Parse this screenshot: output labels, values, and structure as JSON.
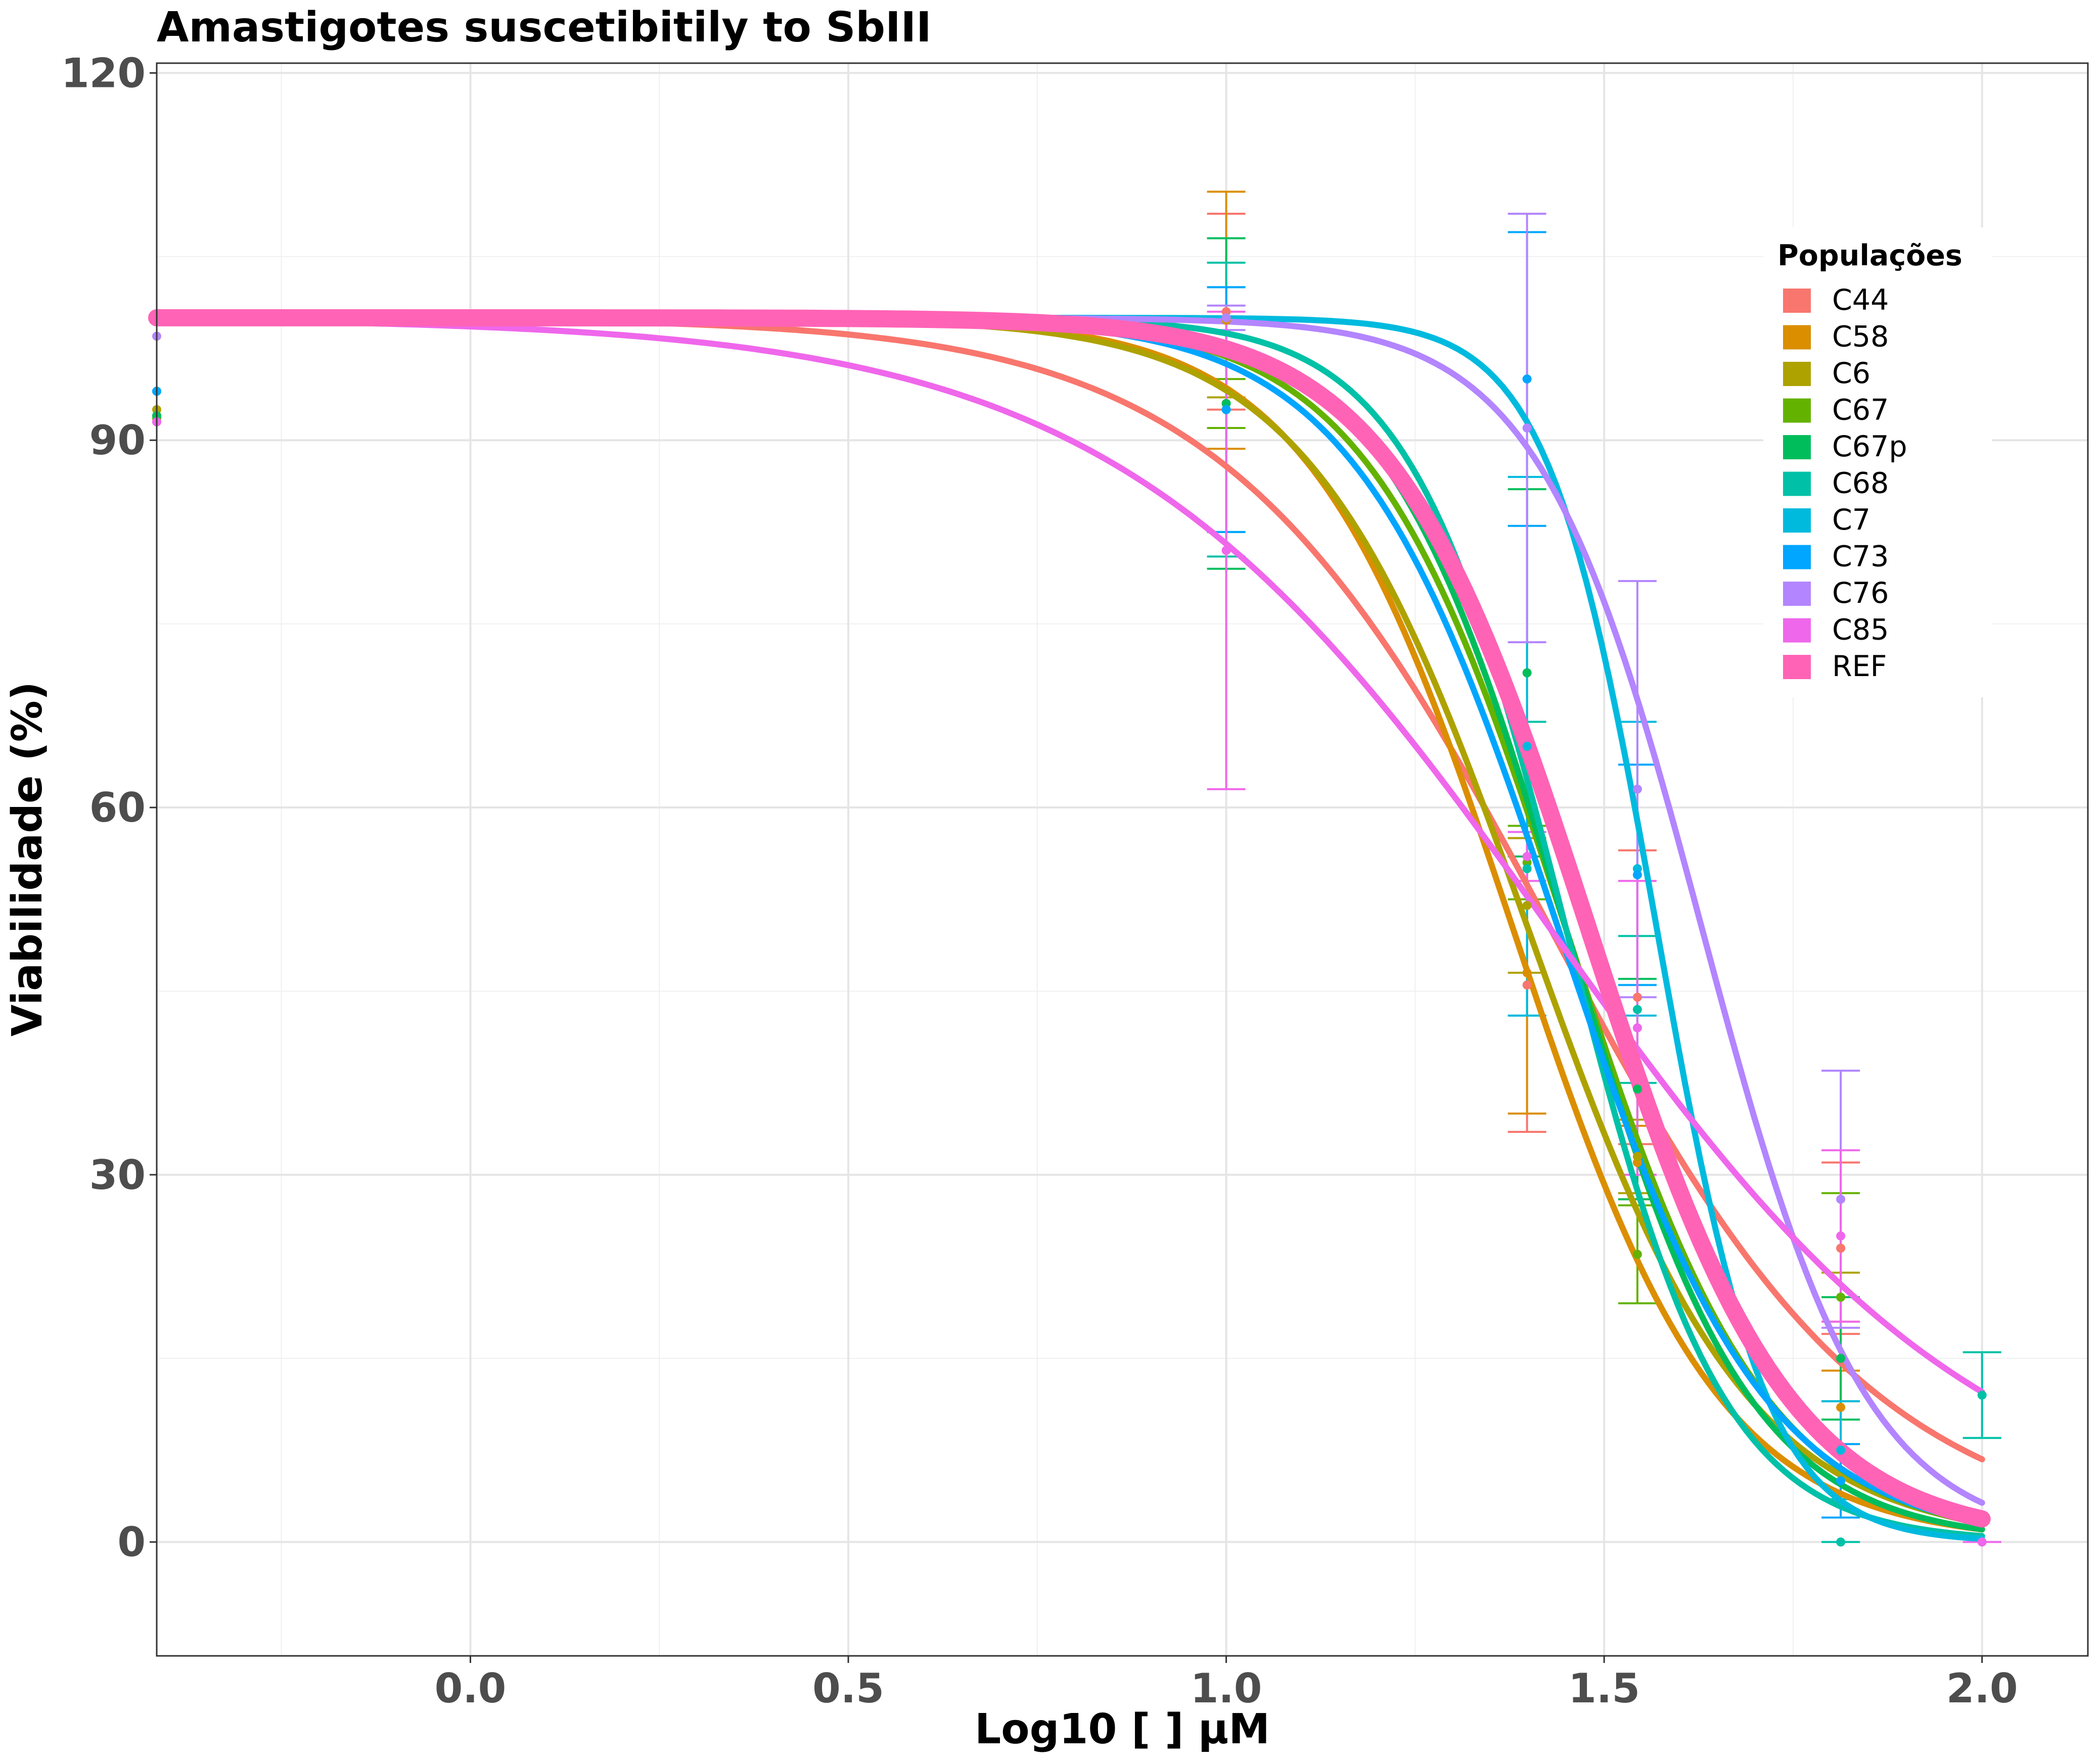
{
  "chart_data": {
    "type": "line",
    "title": "Amastigotes suscetibitily to SbIII",
    "xlabel": "Log10 [ ] µM",
    "ylabel": "Viabilidade (%)",
    "xlim": [
      -0.415,
      2.14
    ],
    "ylim": [
      -9.3,
      120.8
    ],
    "xticks": [
      0.0,
      0.5,
      1.0,
      1.5,
      2.0
    ],
    "xtick_labels": [
      "0.0",
      "0.5",
      "1.0",
      "1.5",
      "2.0"
    ],
    "yticks": [
      0,
      30,
      60,
      90,
      120
    ],
    "ytick_labels": [
      "0",
      "30",
      "60",
      "90",
      "120"
    ],
    "grid": true,
    "legend": {
      "title": "Populações",
      "position": "right-inside"
    },
    "x_doses": [
      -0.415,
      1.0,
      1.398,
      1.544,
      1.813,
      2.0
    ],
    "series": [
      {
        "name": "C44",
        "color": "#F8766D",
        "ic50_log": 1.43,
        "hill": 2.0,
        "points": [
          91.5,
          100.5,
          45.5,
          44.5,
          24.0,
          null
        ],
        "errors": [
          0,
          8,
          12,
          12,
          7,
          0
        ]
      },
      {
        "name": "C58",
        "color": "#DB8E00",
        "ic50_log": 1.38,
        "hill": 3.2,
        "points": [
          92.0,
          99.8,
          46.5,
          31.0,
          11.0,
          null
        ],
        "errors": [
          0,
          10.5,
          11.5,
          3,
          3,
          0
        ]
      },
      {
        "name": "C6",
        "color": "#AEA200",
        "ic50_log": 1.4,
        "hill": 3.0,
        "points": [
          92.5,
          100.0,
          52.0,
          31.5,
          20.0,
          null
        ],
        "errors": [
          0,
          6.5,
          5.5,
          3,
          2,
          0
        ]
      },
      {
        "name": "C67",
        "color": "#64B200",
        "ic50_log": 1.45,
        "hill": 3.3,
        "points": [
          91.8,
          93.0,
          55.5,
          23.5,
          20.0,
          null
        ],
        "errors": [
          0,
          2,
          3,
          4,
          8.5,
          0
        ]
      },
      {
        "name": "C67p",
        "color": "#00BD5C",
        "ic50_log": 1.45,
        "hill": 3.6,
        "points": [
          92.0,
          93.0,
          71.0,
          37.0,
          15.0,
          null
        ],
        "errors": [
          0,
          13.5,
          15.0,
          9,
          5,
          0
        ]
      },
      {
        "name": "C68",
        "color": "#00C1A7",
        "ic50_log": 1.45,
        "hill": 4.2,
        "points": [
          94.0,
          92.5,
          55.0,
          43.5,
          0.0,
          12.0
        ],
        "errors": [
          0,
          12,
          12,
          6,
          0,
          3.5
        ]
      },
      {
        "name": "C7",
        "color": "#00BADE",
        "ic50_log": 1.57,
        "hill": 6.0,
        "points": [
          94.0,
          92.5,
          65.0,
          55.0,
          7.5,
          null
        ],
        "errors": [
          0,
          10,
          22,
          12,
          4,
          0
        ]
      },
      {
        "name": "C73",
        "color": "#00A6FF",
        "ic50_log": 1.44,
        "hill": 3.2,
        "points": [
          94.0,
          92.5,
          95.0,
          54.5,
          5.0,
          null
        ],
        "errors": [
          0,
          10,
          12,
          9,
          3,
          0
        ]
      },
      {
        "name": "C76",
        "color": "#B385FF",
        "ic50_log": 1.63,
        "hill": 4.0,
        "points": [
          98.5,
          100.0,
          91.0,
          61.5,
          28.0,
          null
        ],
        "errors": [
          0,
          1,
          17.5,
          17,
          10.5,
          0
        ]
      },
      {
        "name": "C85",
        "color": "#EF67EB",
        "ic50_log": 1.43,
        "hill": 1.5,
        "points": [
          91.5,
          81.0,
          56.0,
          42.0,
          25.0,
          0.0
        ],
        "errors": [
          0,
          19.5,
          2,
          12,
          7,
          0
        ]
      },
      {
        "name": "REF",
        "color": "#FF63B6",
        "ic50_log": 1.48,
        "hill": 3.3,
        "points": [
          null,
          null,
          null,
          null,
          null,
          null
        ],
        "errors": [
          0,
          0,
          0,
          0,
          0,
          0
        ]
      }
    ]
  }
}
